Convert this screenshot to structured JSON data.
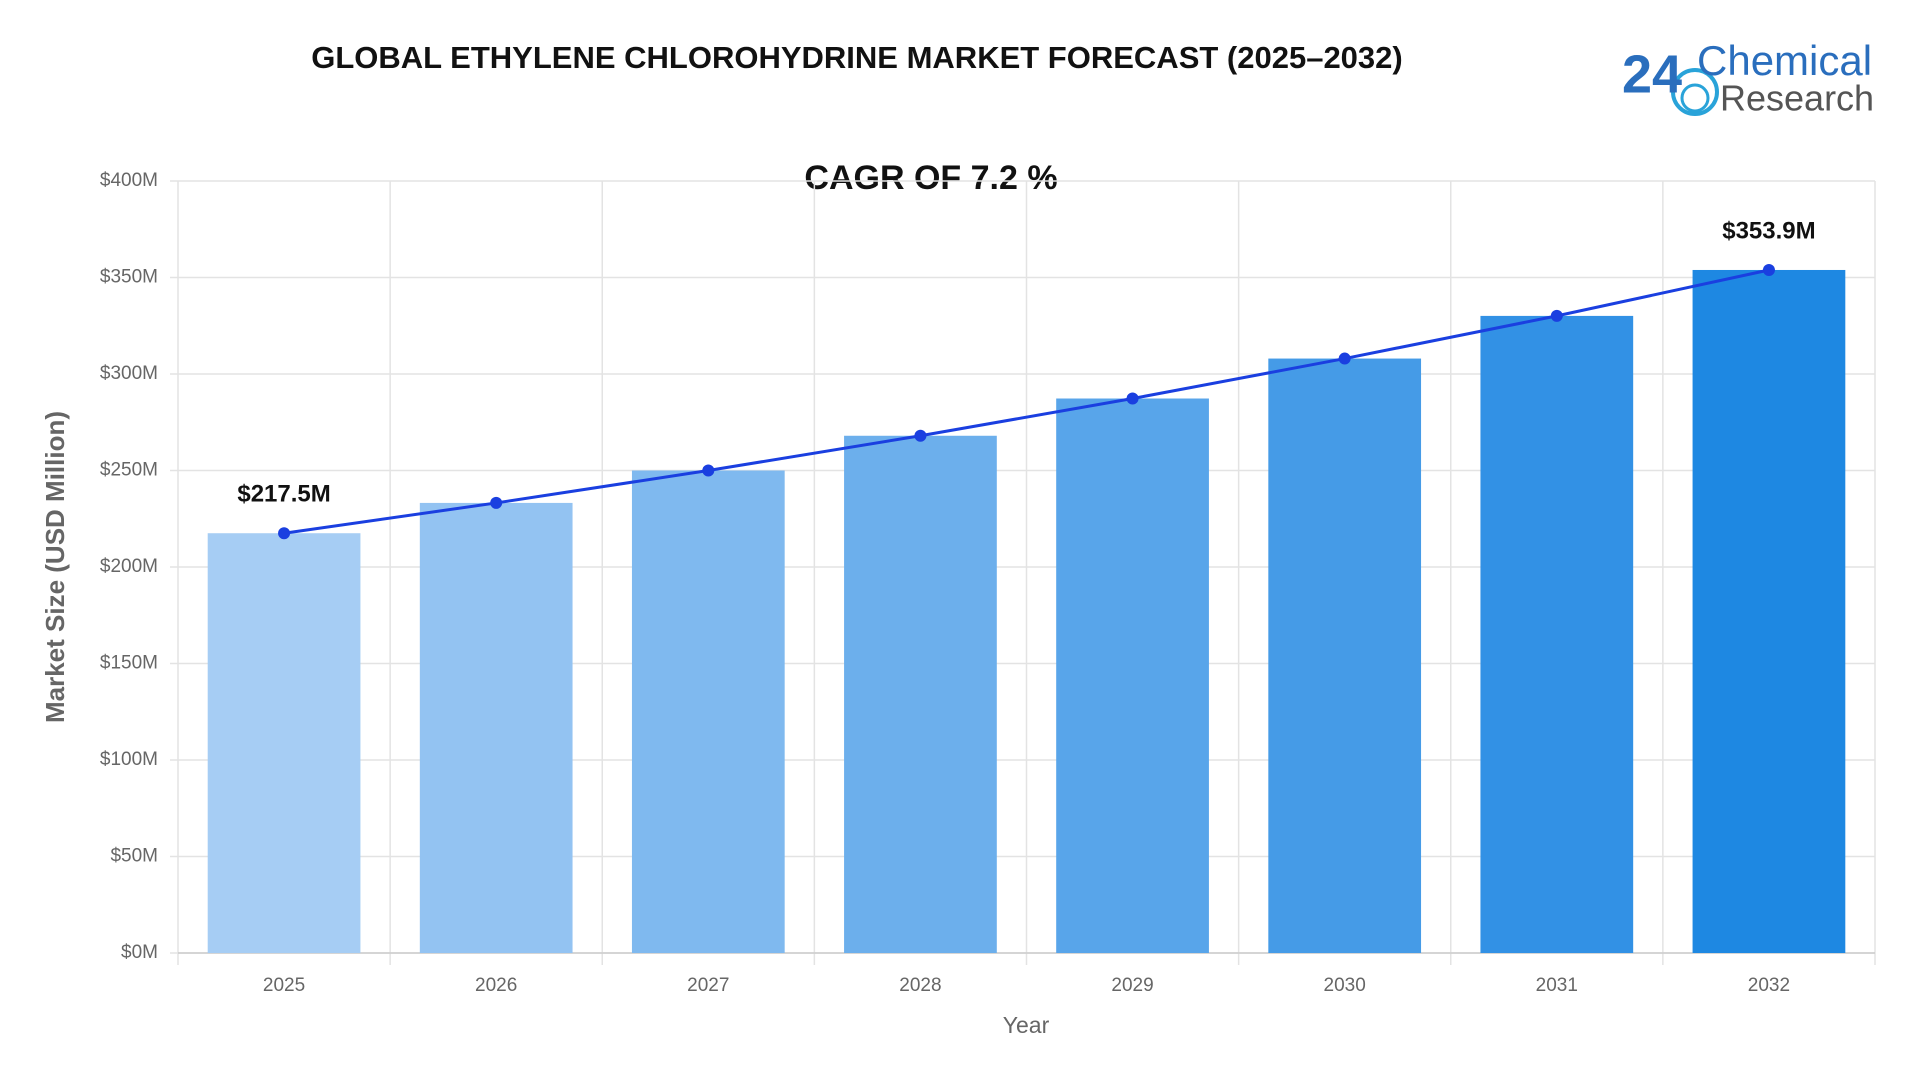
{
  "chart_data": {
    "type": "bar",
    "title": "GLOBAL ETHYLENE CHLOROHYDRINE MARKET FORECAST (2025–2032)",
    "subtitle": "CAGR OF 7.2 %",
    "x_label": "Year",
    "y_label": "Market Size (USD Million)",
    "categories": [
      "2025",
      "2026",
      "2027",
      "2028",
      "2029",
      "2030",
      "2031",
      "2032"
    ],
    "values": [
      217.5,
      233.2,
      250.0,
      268.0,
      287.3,
      308.0,
      330.1,
      353.9
    ],
    "value_labels": [
      "$217.5M",
      null,
      null,
      null,
      null,
      null,
      null,
      "$353.9M"
    ],
    "colors": [
      "#a6cdf4",
      "#93c3f2",
      "#7fb9ef",
      "#6cafec",
      "#58a5ea",
      "#459be7",
      "#3291e5",
      "#1e88e2"
    ],
    "line_color": "#1a3fe0",
    "ylim": [
      0,
      400
    ],
    "yticks": [
      {
        "value": 0,
        "label": "$0M"
      },
      {
        "value": 50,
        "label": "$50M"
      },
      {
        "value": 100,
        "label": "$100M"
      },
      {
        "value": 150,
        "label": "$150M"
      },
      {
        "value": 200,
        "label": "$200M"
      },
      {
        "value": 250,
        "label": "$250M"
      },
      {
        "value": 300,
        "label": "$300M"
      },
      {
        "value": 350,
        "label": "$350M"
      },
      {
        "value": 400,
        "label": "$400M"
      }
    ],
    "grid": true
  },
  "logo": {
    "number": "24",
    "line1": "Chemical",
    "line2": "Research"
  }
}
